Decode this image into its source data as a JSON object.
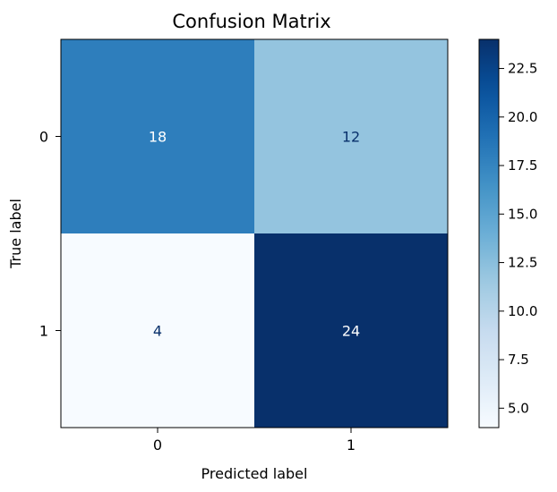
{
  "chart_data": {
    "type": "heatmap",
    "title": "Confusion Matrix",
    "xlabel": "Predicted label",
    "ylabel": "True label",
    "x_categories": [
      "0",
      "1"
    ],
    "y_categories": [
      "0",
      "1"
    ],
    "values": [
      [
        18,
        12
      ],
      [
        4,
        24
      ]
    ],
    "colormap": "Blues",
    "colorbar": {
      "range": [
        4,
        24
      ],
      "ticks": [
        5.0,
        7.5,
        10.0,
        12.5,
        15.0,
        17.5,
        20.0,
        22.5
      ],
      "tick_labels": [
        "5.0",
        "7.5",
        "10.0",
        "12.5",
        "15.0",
        "17.5",
        "20.0",
        "22.5"
      ]
    },
    "cell_text_colors": {
      "dark": "#ffffff",
      "light": "#08306b"
    }
  }
}
